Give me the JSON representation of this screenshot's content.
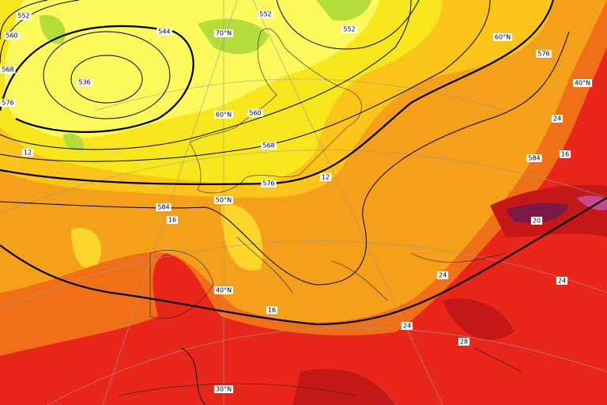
{
  "contour_labels": [
    "552",
    "560",
    "568",
    "576",
    "12",
    "544",
    "536",
    "552",
    "552",
    "576",
    "24",
    "560",
    "568",
    "576",
    "12",
    "584",
    "16",
    "584",
    "16",
    "20",
    "24",
    "24",
    "16",
    "24",
    "28"
  ],
  "latitude_labels": [
    "70°N",
    "60°N",
    "40°N",
    "60°N",
    "50°N",
    "40°N",
    "30°N"
  ]
}
